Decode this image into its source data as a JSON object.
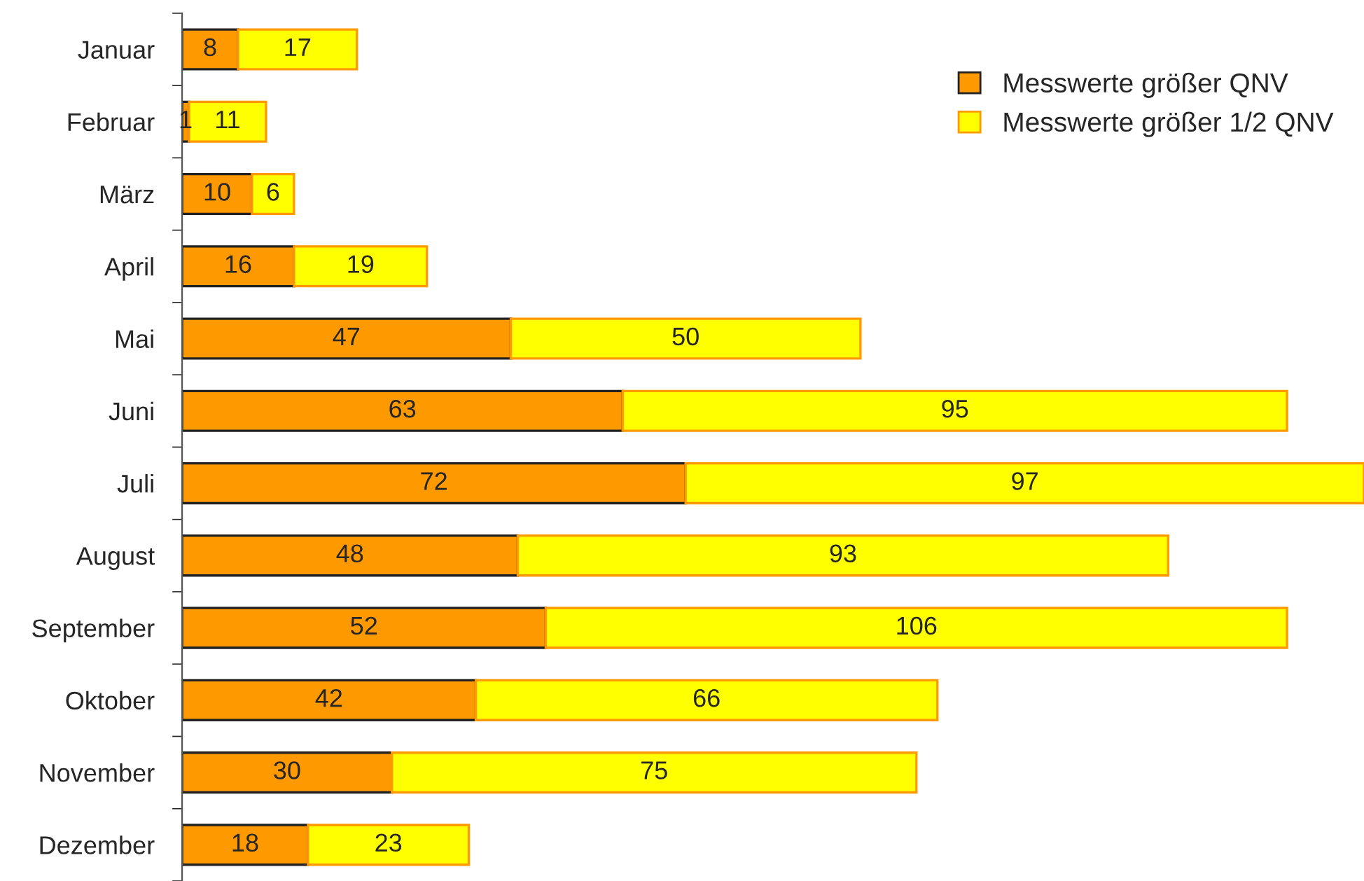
{
  "chart_data": {
    "type": "bar",
    "orientation": "horizontal",
    "stacked": true,
    "data_labels": true,
    "legend": "top right",
    "grid": false,
    "tick_labels": "y",
    "categories": [
      "Januar",
      "Februar",
      "März",
      "April",
      "Mai",
      "Juni",
      "Juli",
      "August",
      "September",
      "Oktober",
      "November",
      "Dezember"
    ],
    "series": [
      {
        "name": "Messwerte größer QNV",
        "color": "#ff9900",
        "values": [
          8,
          1,
          10,
          16,
          47,
          63,
          72,
          48,
          52,
          42,
          30,
          18
        ]
      },
      {
        "name": "Messwerte größer 1/2 QNV",
        "color": "#ffff00",
        "values": [
          17,
          11,
          6,
          19,
          50,
          95,
          97,
          93,
          106,
          66,
          75,
          23
        ]
      }
    ]
  }
}
